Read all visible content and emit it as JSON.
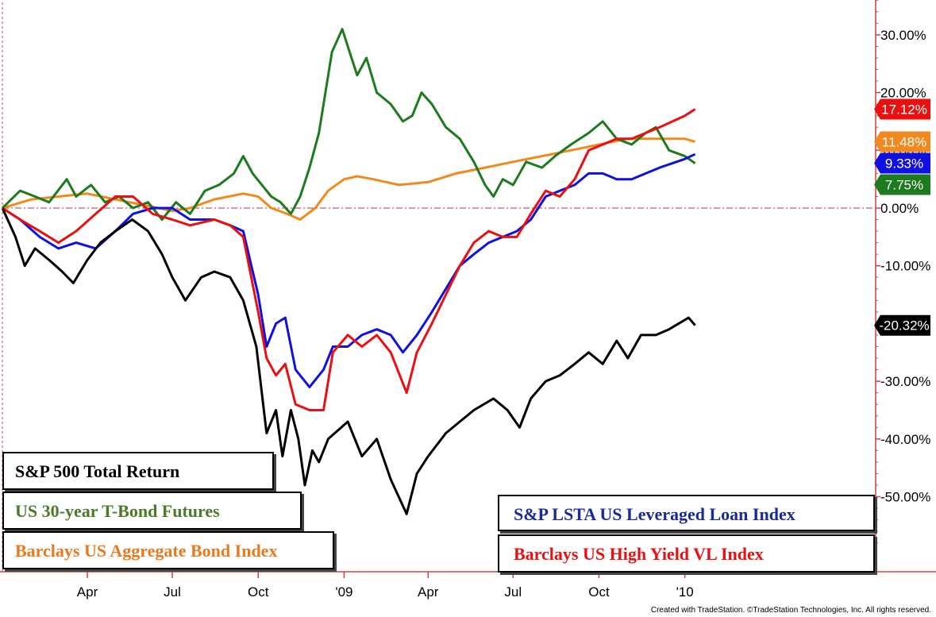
{
  "chart_data": {
    "type": "line",
    "ylim": [
      -60,
      35
    ],
    "y_ticks": [
      30,
      20,
      10,
      0,
      -10,
      -20,
      -30,
      -40,
      -50
    ],
    "y_tick_labels": [
      "30.00%",
      "20.00%",
      "10.00%",
      "0.00%",
      "-10.00%",
      "-20.00%",
      "-30.00%",
      "-40.00%",
      "-50.00%"
    ],
    "x_ticks": [
      {
        "label": "Apr",
        "x": "2008-04-01"
      },
      {
        "label": "Jul",
        "x": "2008-07-01"
      },
      {
        "label": "Oct",
        "x": "2008-10-01"
      },
      {
        "label": "'09",
        "x": "2009-01-01"
      },
      {
        "label": "Apr",
        "x": "2009-04-01"
      },
      {
        "label": "Jul",
        "x": "2009-07-01"
      },
      {
        "label": "Oct",
        "x": "2009-10-01"
      },
      {
        "label": "'10",
        "x": "2010-01-01"
      }
    ],
    "xlim": [
      "2008-01-01",
      "2010-01-20"
    ],
    "zero_line": true,
    "series": [
      {
        "name": "S&P 500 Total Return",
        "color": "#000000",
        "end_label": "-20.32%",
        "points": [
          [
            "2008-01-01",
            0
          ],
          [
            "2008-01-15",
            -5
          ],
          [
            "2008-01-25",
            -10
          ],
          [
            "2008-02-05",
            -7
          ],
          [
            "2008-02-20",
            -9
          ],
          [
            "2008-03-05",
            -11
          ],
          [
            "2008-03-17",
            -13
          ],
          [
            "2008-04-01",
            -9
          ],
          [
            "2008-04-15",
            -6
          ],
          [
            "2008-05-01",
            -4
          ],
          [
            "2008-05-19",
            -2
          ],
          [
            "2008-06-05",
            -4
          ],
          [
            "2008-06-20",
            -8
          ],
          [
            "2008-07-01",
            -12
          ],
          [
            "2008-07-15",
            -16
          ],
          [
            "2008-08-01",
            -12
          ],
          [
            "2008-08-15",
            -11
          ],
          [
            "2008-09-01",
            -12
          ],
          [
            "2008-09-15",
            -16
          ],
          [
            "2008-09-29",
            -24
          ],
          [
            "2008-10-10",
            -39
          ],
          [
            "2008-10-20",
            -35
          ],
          [
            "2008-10-27",
            -43
          ],
          [
            "2008-11-05",
            -35
          ],
          [
            "2008-11-13",
            -40
          ],
          [
            "2008-11-20",
            -48
          ],
          [
            "2008-11-28",
            -42
          ],
          [
            "2008-12-05",
            -44
          ],
          [
            "2008-12-15",
            -40
          ],
          [
            "2009-01-05",
            -37
          ],
          [
            "2009-01-20",
            -43
          ],
          [
            "2009-02-05",
            -40
          ],
          [
            "2009-02-20",
            -47
          ],
          [
            "2009-03-09",
            -53
          ],
          [
            "2009-03-20",
            -46
          ],
          [
            "2009-04-01",
            -43
          ],
          [
            "2009-04-20",
            -39
          ],
          [
            "2009-05-05",
            -37
          ],
          [
            "2009-05-20",
            -35
          ],
          [
            "2009-06-10",
            -33
          ],
          [
            "2009-06-25",
            -35
          ],
          [
            "2009-07-08",
            -38
          ],
          [
            "2009-07-20",
            -33
          ],
          [
            "2009-08-05",
            -30
          ],
          [
            "2009-08-20",
            -29
          ],
          [
            "2009-09-05",
            -27
          ],
          [
            "2009-09-20",
            -25
          ],
          [
            "2009-10-05",
            -27
          ],
          [
            "2009-10-20",
            -23
          ],
          [
            "2009-11-01",
            -26
          ],
          [
            "2009-11-15",
            -22
          ],
          [
            "2009-12-01",
            -22
          ],
          [
            "2009-12-15",
            -21
          ],
          [
            "2010-01-05",
            -19
          ],
          [
            "2010-01-12",
            -20.32
          ]
        ]
      },
      {
        "name": "US 30-year T-Bond Futures",
        "color": "#1e7a1e",
        "end_label": "7.75%",
        "points": [
          [
            "2008-01-01",
            0
          ],
          [
            "2008-01-20",
            3
          ],
          [
            "2008-02-05",
            2
          ],
          [
            "2008-02-20",
            1
          ],
          [
            "2008-03-10",
            5
          ],
          [
            "2008-03-20",
            2
          ],
          [
            "2008-04-05",
            4
          ],
          [
            "2008-04-20",
            1
          ],
          [
            "2008-05-05",
            2
          ],
          [
            "2008-05-20",
            0
          ],
          [
            "2008-06-05",
            1
          ],
          [
            "2008-06-20",
            -2
          ],
          [
            "2008-07-05",
            1
          ],
          [
            "2008-07-20",
            -1
          ],
          [
            "2008-08-05",
            3
          ],
          [
            "2008-08-20",
            4
          ],
          [
            "2008-09-05",
            6
          ],
          [
            "2008-09-15",
            9
          ],
          [
            "2008-09-25",
            6
          ],
          [
            "2008-10-05",
            4
          ],
          [
            "2008-10-15",
            2
          ],
          [
            "2008-10-25",
            1
          ],
          [
            "2008-11-05",
            -1
          ],
          [
            "2008-11-15",
            2
          ],
          [
            "2008-11-25",
            7
          ],
          [
            "2008-12-05",
            13
          ],
          [
            "2008-12-12",
            20
          ],
          [
            "2008-12-19",
            27
          ],
          [
            "2008-12-30",
            31
          ],
          [
            "2009-01-05",
            28
          ],
          [
            "2009-01-15",
            23
          ],
          [
            "2009-01-25",
            26
          ],
          [
            "2009-02-05",
            20
          ],
          [
            "2009-02-20",
            18
          ],
          [
            "2009-03-05",
            15
          ],
          [
            "2009-03-15",
            16
          ],
          [
            "2009-03-25",
            20
          ],
          [
            "2009-04-05",
            18
          ],
          [
            "2009-04-20",
            14
          ],
          [
            "2009-05-05",
            12
          ],
          [
            "2009-05-20",
            8
          ],
          [
            "2009-06-01",
            4
          ],
          [
            "2009-06-10",
            2
          ],
          [
            "2009-06-20",
            5
          ],
          [
            "2009-07-01",
            4
          ],
          [
            "2009-07-15",
            8
          ],
          [
            "2009-08-01",
            7
          ],
          [
            "2009-08-15",
            9
          ],
          [
            "2009-09-01",
            11
          ],
          [
            "2009-09-20",
            13
          ],
          [
            "2009-10-05",
            15
          ],
          [
            "2009-10-20",
            12
          ],
          [
            "2009-11-05",
            11
          ],
          [
            "2009-11-20",
            13
          ],
          [
            "2009-12-01",
            14
          ],
          [
            "2009-12-15",
            10
          ],
          [
            "2010-01-01",
            9
          ],
          [
            "2010-01-12",
            7.75
          ]
        ]
      },
      {
        "name": "Barclays US Aggregate Bond Index",
        "color": "#f08a1e",
        "end_label": "11.48%",
        "points": [
          [
            "2008-01-01",
            0
          ],
          [
            "2008-02-01",
            1.5
          ],
          [
            "2008-03-01",
            2
          ],
          [
            "2008-04-01",
            2.5
          ],
          [
            "2008-05-01",
            1.5
          ],
          [
            "2008-06-01",
            0.5
          ],
          [
            "2008-07-01",
            -0.5
          ],
          [
            "2008-07-20",
            0
          ],
          [
            "2008-08-15",
            1.5
          ],
          [
            "2008-09-15",
            2.5
          ],
          [
            "2008-10-01",
            2
          ],
          [
            "2008-10-15",
            0
          ],
          [
            "2008-11-01",
            -1
          ],
          [
            "2008-11-15",
            -2
          ],
          [
            "2008-12-01",
            0
          ],
          [
            "2008-12-15",
            3
          ],
          [
            "2009-01-01",
            5
          ],
          [
            "2009-01-15",
            5.5
          ],
          [
            "2009-02-01",
            5
          ],
          [
            "2009-02-15",
            4.5
          ],
          [
            "2009-03-01",
            4
          ],
          [
            "2009-04-01",
            4.5
          ],
          [
            "2009-05-01",
            6
          ],
          [
            "2009-06-01",
            7
          ],
          [
            "2009-07-01",
            8
          ],
          [
            "2009-08-01",
            9
          ],
          [
            "2009-09-01",
            10
          ],
          [
            "2009-10-01",
            11
          ],
          [
            "2009-11-01",
            12
          ],
          [
            "2009-12-01",
            12
          ],
          [
            "2010-01-01",
            12
          ],
          [
            "2010-01-12",
            11.48
          ]
        ]
      },
      {
        "name": "S&P LSTA US Leveraged Loan Index",
        "color": "#1010e0",
        "end_label": "9.33%",
        "points": [
          [
            "2008-01-01",
            0
          ],
          [
            "2008-01-20",
            -2
          ],
          [
            "2008-02-10",
            -5
          ],
          [
            "2008-03-01",
            -7
          ],
          [
            "2008-03-20",
            -6
          ],
          [
            "2008-04-10",
            -7
          ],
          [
            "2008-05-01",
            -4
          ],
          [
            "2008-05-20",
            -1
          ],
          [
            "2008-06-10",
            0
          ],
          [
            "2008-07-01",
            0
          ],
          [
            "2008-07-20",
            -2
          ],
          [
            "2008-08-15",
            -2
          ],
          [
            "2008-09-01",
            -3
          ],
          [
            "2008-09-15",
            -4
          ],
          [
            "2008-10-01",
            -15
          ],
          [
            "2008-10-10",
            -24
          ],
          [
            "2008-10-20",
            -20
          ],
          [
            "2008-10-30",
            -19
          ],
          [
            "2008-11-10",
            -28
          ],
          [
            "2008-11-25",
            -31
          ],
          [
            "2008-12-10",
            -28
          ],
          [
            "2008-12-20",
            -24
          ],
          [
            "2009-01-05",
            -24
          ],
          [
            "2009-01-20",
            -22
          ],
          [
            "2009-02-05",
            -21
          ],
          [
            "2009-02-20",
            -22
          ],
          [
            "2009-03-05",
            -25
          ],
          [
            "2009-03-20",
            -22
          ],
          [
            "2009-04-05",
            -18
          ],
          [
            "2009-04-20",
            -14
          ],
          [
            "2009-05-05",
            -10
          ],
          [
            "2009-05-20",
            -8
          ],
          [
            "2009-06-05",
            -6
          ],
          [
            "2009-06-20",
            -5
          ],
          [
            "2009-07-05",
            -4
          ],
          [
            "2009-07-20",
            -2
          ],
          [
            "2009-08-05",
            2
          ],
          [
            "2009-08-20",
            3
          ],
          [
            "2009-09-05",
            4
          ],
          [
            "2009-09-20",
            6
          ],
          [
            "2009-10-05",
            6
          ],
          [
            "2009-10-20",
            5
          ],
          [
            "2009-11-05",
            5
          ],
          [
            "2009-11-20",
            6
          ],
          [
            "2009-12-05",
            7
          ],
          [
            "2010-01-01",
            8.5
          ],
          [
            "2010-01-12",
            9.33
          ]
        ]
      },
      {
        "name": "Barclays US High Yield VL Index",
        "color": "#e81010",
        "end_label": "17.12%",
        "points": [
          [
            "2008-01-01",
            0
          ],
          [
            "2008-01-20",
            -2
          ],
          [
            "2008-02-10",
            -4
          ],
          [
            "2008-03-01",
            -6
          ],
          [
            "2008-03-20",
            -4
          ],
          [
            "2008-04-10",
            -1
          ],
          [
            "2008-05-01",
            2
          ],
          [
            "2008-05-20",
            2
          ],
          [
            "2008-06-10",
            -1
          ],
          [
            "2008-07-01",
            -2
          ],
          [
            "2008-07-20",
            -3
          ],
          [
            "2008-08-15",
            -2
          ],
          [
            "2008-09-01",
            -3
          ],
          [
            "2008-09-15",
            -5
          ],
          [
            "2008-10-01",
            -18
          ],
          [
            "2008-10-10",
            -26
          ],
          [
            "2008-10-20",
            -29
          ],
          [
            "2008-10-30",
            -27
          ],
          [
            "2008-11-10",
            -34
          ],
          [
            "2008-11-25",
            -35
          ],
          [
            "2008-12-10",
            -35
          ],
          [
            "2008-12-20",
            -25
          ],
          [
            "2009-01-05",
            -22
          ],
          [
            "2009-01-20",
            -24
          ],
          [
            "2009-02-05",
            -22
          ],
          [
            "2009-02-20",
            -25
          ],
          [
            "2009-03-09",
            -32
          ],
          [
            "2009-03-20",
            -25
          ],
          [
            "2009-04-05",
            -20
          ],
          [
            "2009-04-20",
            -15
          ],
          [
            "2009-05-05",
            -10
          ],
          [
            "2009-05-20",
            -6
          ],
          [
            "2009-06-05",
            -4
          ],
          [
            "2009-06-20",
            -5
          ],
          [
            "2009-07-05",
            -5
          ],
          [
            "2009-07-20",
            -1
          ],
          [
            "2009-08-05",
            3
          ],
          [
            "2009-08-20",
            2
          ],
          [
            "2009-09-05",
            5
          ],
          [
            "2009-09-20",
            10
          ],
          [
            "2009-10-05",
            11
          ],
          [
            "2009-10-20",
            12
          ],
          [
            "2009-11-05",
            12
          ],
          [
            "2009-11-20",
            13
          ],
          [
            "2009-12-05",
            14
          ],
          [
            "2010-01-01",
            16
          ],
          [
            "2010-01-12",
            17.12
          ]
        ]
      }
    ]
  },
  "legend_left": [
    {
      "label": "S&P 500 Total Return",
      "color": "#000000"
    },
    {
      "label": "US 30-year T-Bond Futures",
      "color": "#4a7a2a"
    },
    {
      "label": "Barclays US Aggregate Bond Index",
      "color": "#e87a1e"
    }
  ],
  "legend_right": [
    {
      "label": "S&P LSTA US Leveraged Loan Index",
      "color": "#1a2a9a"
    },
    {
      "label": "Barclays US High Yield VL Index",
      "color": "#e81010"
    }
  ],
  "credit": "Created with TradeStation. ©TradeStation Technologies, Inc. All rights reserved."
}
